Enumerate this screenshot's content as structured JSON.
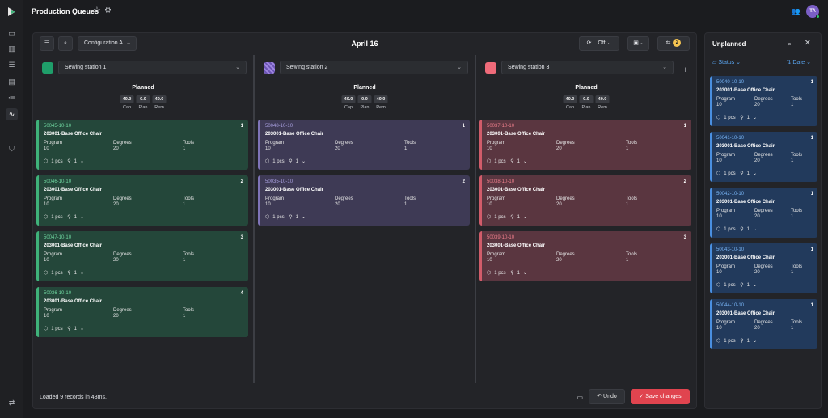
{
  "header": {
    "title": "Production Queues",
    "avatar_initials": "TA"
  },
  "rail": {
    "icons": [
      "presentation-icon",
      "chart-icon",
      "list-icon",
      "calendar-icon",
      "list-check-icon",
      "layers-icon",
      "waveform-icon",
      "shield-icon",
      "swap-icon"
    ]
  },
  "toolbar": {
    "configuration": "Configuration A",
    "date": "April 16",
    "toggle_label": "Off",
    "conflicts_count": "2"
  },
  "planned": {
    "label": "Planned",
    "cap_label": "Cap",
    "plan_label": "Plan",
    "rem_label": "Rem"
  },
  "card_labels": {
    "program": "Program",
    "degrees": "Degrees",
    "tools": "Tools",
    "pcs_suffix": "pcs"
  },
  "columns": [
    {
      "station": "Sewing station 1",
      "color": "#1f9e6a",
      "cap": "40.0",
      "plan": "0.0",
      "rem": "40.0",
      "cards": [
        {
          "code": "50045-10-10",
          "index": "1",
          "name": "203001-Base Office Chair",
          "program": "10",
          "degrees": "20",
          "tools": "1",
          "pcs": "1 pcs",
          "tool_count": "1"
        },
        {
          "code": "50046-10-10",
          "index": "2",
          "name": "203001-Base Office Chair",
          "program": "10",
          "degrees": "20",
          "tools": "1",
          "pcs": "1 pcs",
          "tool_count": "1"
        },
        {
          "code": "50047-10-10",
          "index": "3",
          "name": "203001-Base Office Chair",
          "program": "10",
          "degrees": "20",
          "tools": "1",
          "pcs": "1 pcs",
          "tool_count": "1"
        },
        {
          "code": "50036-10-10",
          "index": "4",
          "name": "203001-Base Office Chair",
          "program": "10",
          "degrees": "20",
          "tools": "1",
          "pcs": "1 pcs",
          "tool_count": "1"
        }
      ]
    },
    {
      "station": "Sewing station 2",
      "color": "#8f77d8",
      "cap": "40.0",
      "plan": "0.0",
      "rem": "40.0",
      "cards": [
        {
          "code": "50048-10-10",
          "index": "1",
          "name": "203001-Base Office Chair",
          "program": "10",
          "degrees": "20",
          "tools": "1",
          "pcs": "1 pcs",
          "tool_count": "1"
        },
        {
          "code": "50035-10-10",
          "index": "2",
          "name": "203001-Base Office Chair",
          "program": "10",
          "degrees": "20",
          "tools": "1",
          "pcs": "1 pcs",
          "tool_count": "1"
        }
      ]
    },
    {
      "station": "Sewing station 3",
      "color": "#ef6b7a",
      "cap": "40.0",
      "plan": "0.0",
      "rem": "40.0",
      "cards": [
        {
          "code": "50037-10-10",
          "index": "1",
          "name": "203001-Base Office Chair",
          "program": "10",
          "degrees": "20",
          "tools": "1",
          "pcs": "1 pcs",
          "tool_count": "1"
        },
        {
          "code": "50038-10-10",
          "index": "2",
          "name": "203001-Base Office Chair",
          "program": "10",
          "degrees": "20",
          "tools": "1",
          "pcs": "1 pcs",
          "tool_count": "1"
        },
        {
          "code": "50039-10-10",
          "index": "3",
          "name": "203001-Base Office Chair",
          "program": "10",
          "degrees": "20",
          "tools": "1",
          "pcs": "1 pcs",
          "tool_count": "1"
        }
      ]
    }
  ],
  "footer": {
    "status": "Loaded 9 records in 43ms.",
    "undo": "Undo",
    "save": "Save changes"
  },
  "unplanned": {
    "title": "Unplanned",
    "status_filter": "Status",
    "date_sort": "Date",
    "cards": [
      {
        "code": "50040-10-10",
        "index": "1",
        "name": "203001-Base Office Chair",
        "program": "10",
        "degrees": "20",
        "tools": "1",
        "pcs": "1 pcs",
        "tool_count": "1"
      },
      {
        "code": "50041-10-10",
        "index": "1",
        "name": "203001-Base Office Chair",
        "program": "10",
        "degrees": "20",
        "tools": "1",
        "pcs": "1 pcs",
        "tool_count": "1"
      },
      {
        "code": "50042-10-10",
        "index": "1",
        "name": "203001-Base Office Chair",
        "program": "10",
        "degrees": "20",
        "tools": "1",
        "pcs": "1 pcs",
        "tool_count": "1"
      },
      {
        "code": "50043-10-10",
        "index": "1",
        "name": "203001-Base Office Chair",
        "program": "10",
        "degrees": "20",
        "tools": "1",
        "pcs": "1 pcs",
        "tool_count": "1"
      },
      {
        "code": "50044-10-10",
        "index": "1",
        "name": "203001-Base Office Chair",
        "program": "10",
        "degrees": "20",
        "tools": "1",
        "pcs": "1 pcs",
        "tool_count": "1"
      }
    ]
  }
}
